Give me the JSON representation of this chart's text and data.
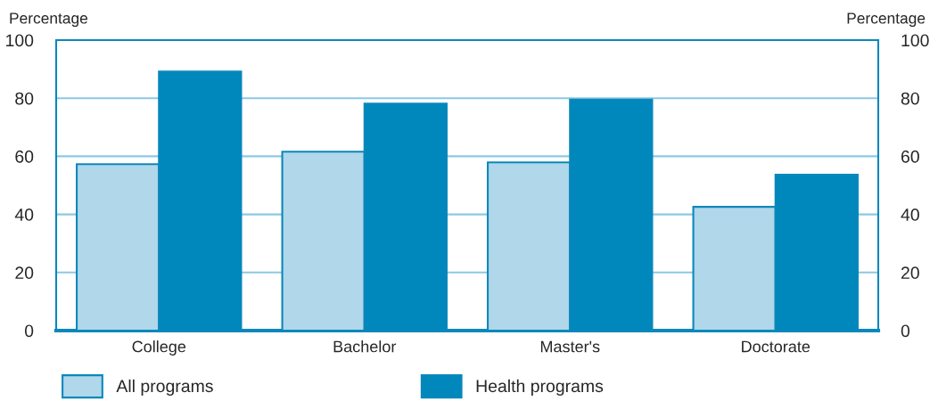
{
  "chart_data": {
    "type": "bar",
    "categories": [
      "College",
      "Bachelor",
      "Master's",
      "Doctorate"
    ],
    "series": [
      {
        "name": "All programs",
        "color": "#b0d7ea",
        "values": [
          57.3,
          61.6,
          57.9,
          42.6
        ]
      },
      {
        "name": "Health programs",
        "color": "#0087bb",
        "values": [
          89.2,
          78.1,
          79.5,
          53.7
        ]
      }
    ],
    "ylabel": "Percentage",
    "y2label": "Percentage",
    "ylim": [
      0,
      100
    ],
    "yticks": [
      0,
      20,
      40,
      60,
      80,
      100
    ],
    "y2lim": [
      0,
      100
    ],
    "y2ticks": [
      0,
      20,
      40,
      60,
      80,
      100
    ],
    "grid": "y",
    "legend": "bottom"
  }
}
